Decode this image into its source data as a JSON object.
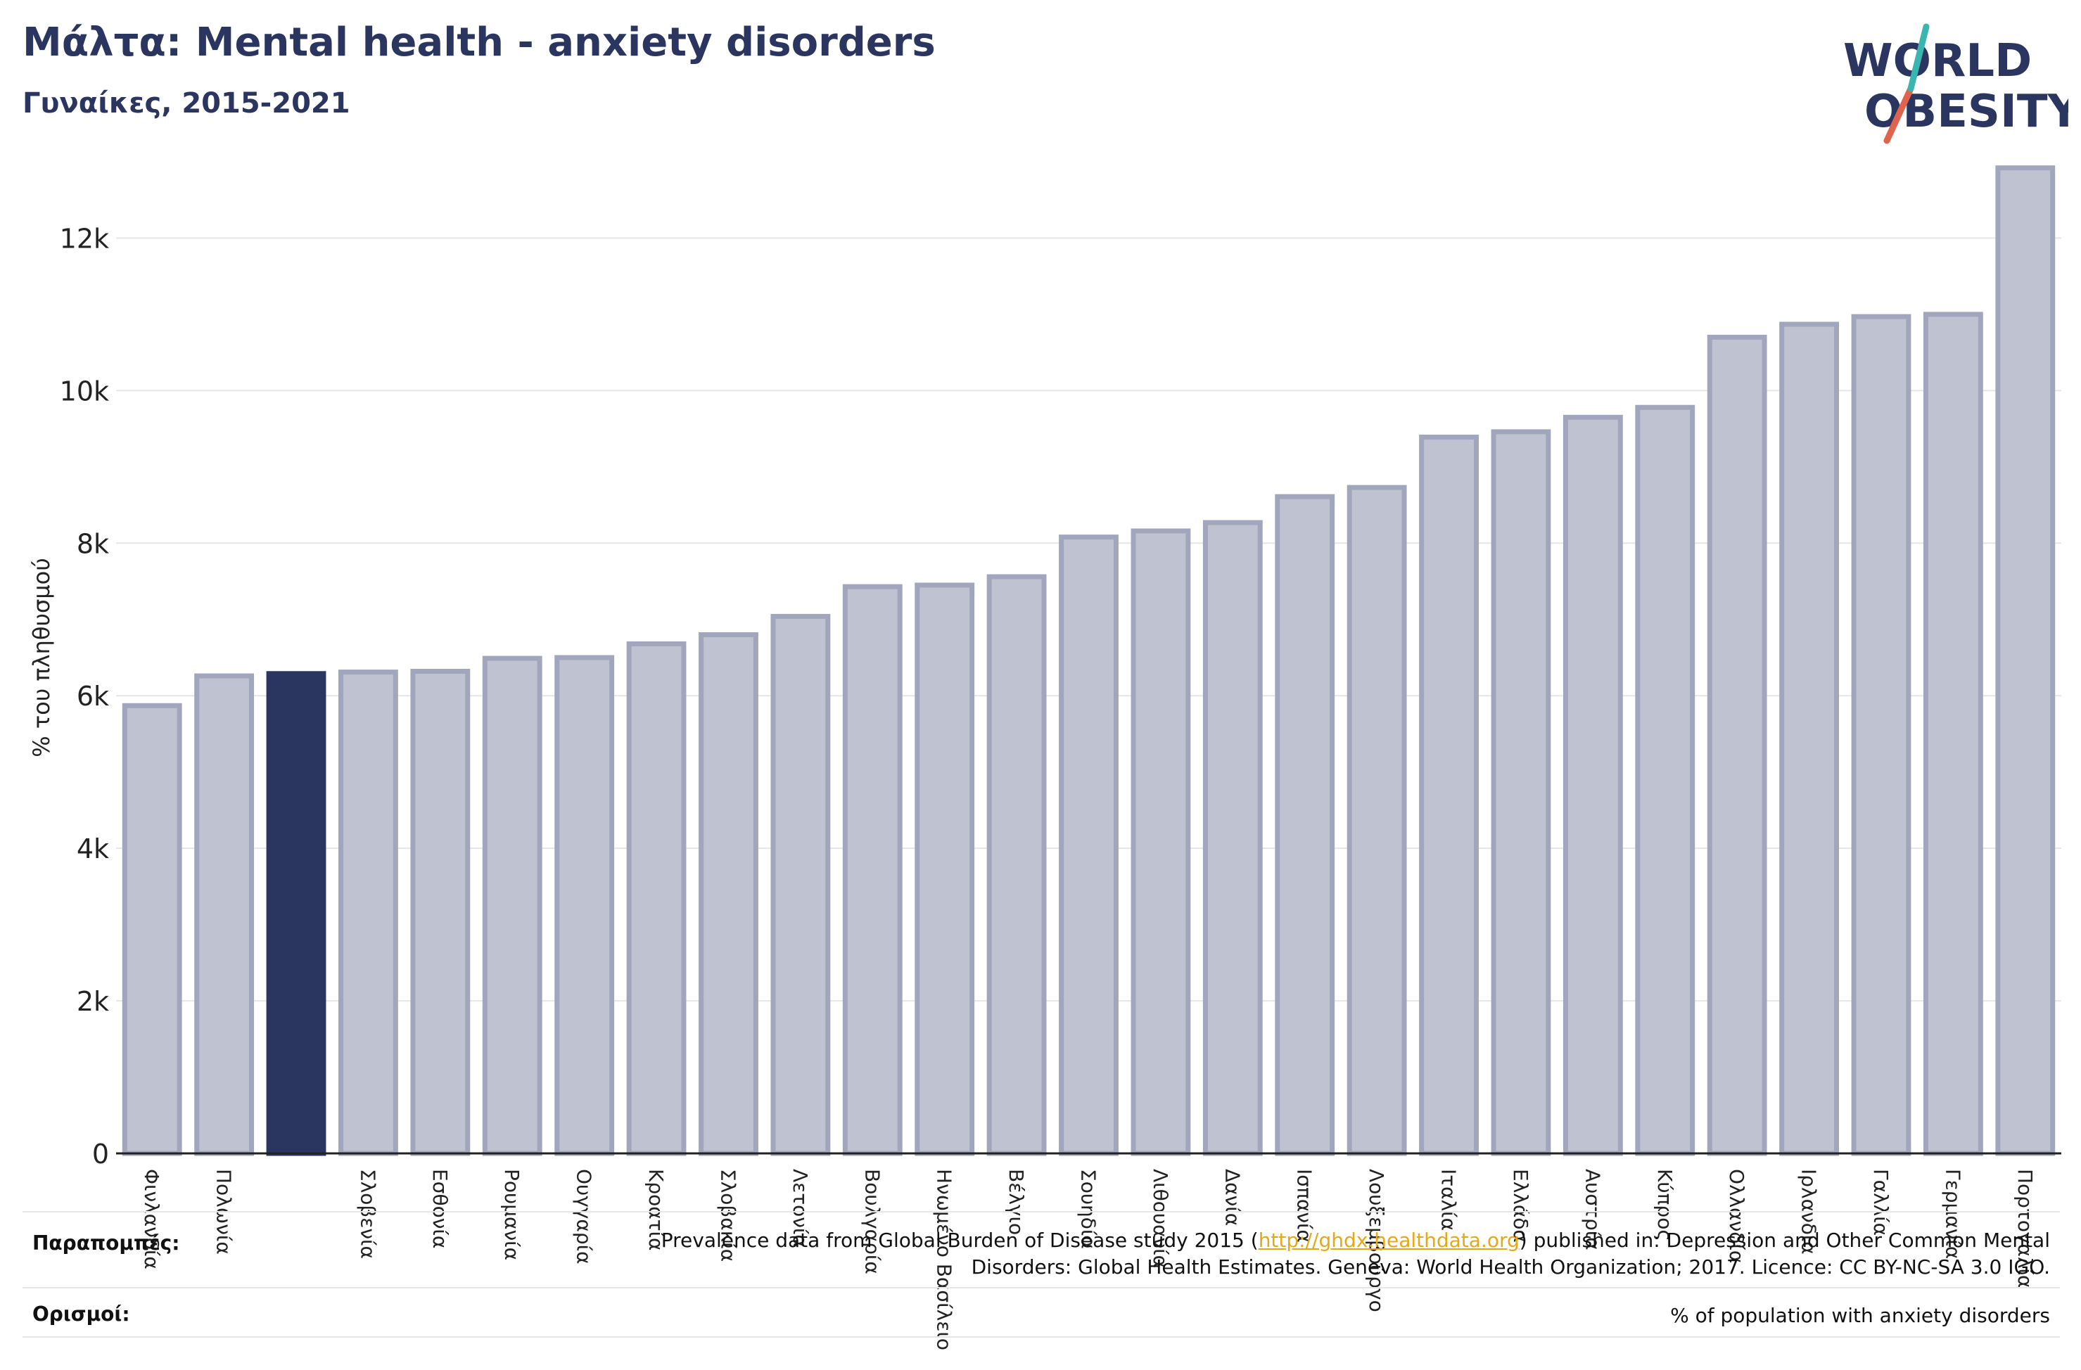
{
  "header": {
    "title": "Μάλτα: Mental health - anxiety disorders",
    "subtitle": "Γυναίκες, 2015-2021"
  },
  "logo": {
    "line1": "WORLD",
    "line2": "OBESITY"
  },
  "colors": {
    "highlight": "#2a3660",
    "bar_fill": "#bfc2d0",
    "bar_stroke": "#a2a6bc",
    "grid": "#e6e6e6",
    "axis": "#222222",
    "link": "#e6a817"
  },
  "chart_data": {
    "type": "bar",
    "ylabel": "% του πληθυσμού",
    "ylim": [
      0,
      13000
    ],
    "yticks": [
      0,
      2000,
      4000,
      6000,
      8000,
      10000,
      12000
    ],
    "ytick_labels": [
      "0",
      "2k",
      "4k",
      "6k",
      "8k",
      "10k",
      "12k"
    ],
    "grid": true,
    "highlight_index": 2,
    "categories": [
      "Φινλανδία",
      "Πολωνία",
      "",
      "Σλοβενία",
      "Εσθονία",
      "Ρουμανία",
      "Ουγγαρία",
      "Κροατία",
      "Σλοβακία",
      "Λετονία",
      "Βουλγαρία",
      "Ηνωμένο Βασίλειο",
      "Βέλγιο",
      "Σουηδία",
      "Λιθουανία",
      "Δανία",
      "Ισπανία",
      "Λουξεμβούργο",
      "Ιταλία",
      "Ελλάδα",
      "Αυστρία",
      "Κύπρος",
      "Ολλανδία",
      "Ιρλανδία",
      "Γαλλία",
      "Γερμανία",
      "Πορτογαλία"
    ],
    "values": [
      5870,
      6260,
      6290,
      6310,
      6320,
      6490,
      6500,
      6680,
      6800,
      7040,
      7430,
      7450,
      7560,
      8080,
      8160,
      8270,
      8610,
      8730,
      9390,
      9460,
      9650,
      9780,
      10700,
      10870,
      10970,
      11000,
      12920
    ]
  },
  "footer": {
    "references_label": "Παραπομπές:",
    "references_text_1": "Prevalence data from Global Burden of Disease study 2015 (",
    "references_link": "http://ghdx.healthdata.org",
    "references_text_2": ") published in: Depression and Other Common Mental",
    "references_text_3": "Disorders: Global Health Estimates. Geneva: World Health Organization; 2017. Licence: CC BY-NC-SA 3.0 IGO.",
    "definitions_label": "Ορισμοί:",
    "definitions_text": "% of population with anxiety disorders"
  }
}
